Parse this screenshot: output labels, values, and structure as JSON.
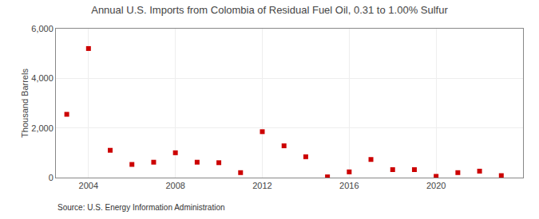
{
  "chart_data": {
    "type": "scatter",
    "title": "Annual U.S. Imports from Colombia of Residual Fuel Oil, 0.31 to 1.00% Sulfur",
    "ylabel": "Thousand Barrels",
    "annotations": [
      "Source: U.S. Energy Information Administration"
    ],
    "x": [
      2003,
      2004,
      2005,
      2006,
      2007,
      2008,
      2009,
      2010,
      2011,
      2012,
      2013,
      2014,
      2015,
      2016,
      2017,
      2018,
      2019,
      2020,
      2021,
      2022,
      2023
    ],
    "values": [
      2550,
      5200,
      1100,
      530,
      620,
      1000,
      620,
      600,
      200,
      1850,
      1280,
      840,
      30,
      230,
      730,
      320,
      320,
      50,
      200,
      260,
      80
    ],
    "color": "#cc0000",
    "marker": "square",
    "xlim": [
      2002.5,
      2024
    ],
    "xticks": [
      2004,
      2008,
      2012,
      2016,
      2020
    ],
    "ylim": [
      0,
      6000
    ],
    "yticks": [
      0,
      {
        "value": 2000,
        "label": "2,000"
      },
      {
        "value": 4000,
        "label": "4,000"
      },
      {
        "value": 6000,
        "label": "6,000"
      }
    ],
    "grid": true
  }
}
